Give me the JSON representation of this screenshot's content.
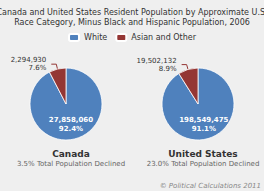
{
  "title": "Canada and United States Resident Population by Approximate U.S.\nRace Category, Minus Black and Hispanic Population, 2006",
  "annotations": [
    "© Political Calculations 2011"
  ],
  "legend": "top",
  "chart_data": [
    {
      "type": "pie",
      "title": "Canada",
      "subtitle": "3.5% Total Population Declined",
      "categories": [
        "White",
        "Asian and Other"
      ],
      "values": [
        27858060,
        2294930
      ],
      "value_labels": [
        "27,858,060\n92.4%",
        "2,294,930\n7.6%"
      ],
      "colors": [
        "#4F81BD",
        "#943634"
      ]
    },
    {
      "type": "pie",
      "title": "United States",
      "subtitle": "23.0% Total Population Declined",
      "categories": [
        "White",
        "Asian and Other"
      ],
      "values": [
        198549475,
        19502132
      ],
      "value_labels": [
        "198,549,475\n91.1%",
        "19,502,132\n8.9%"
      ],
      "colors": [
        "#4F81BD",
        "#943634"
      ]
    }
  ]
}
